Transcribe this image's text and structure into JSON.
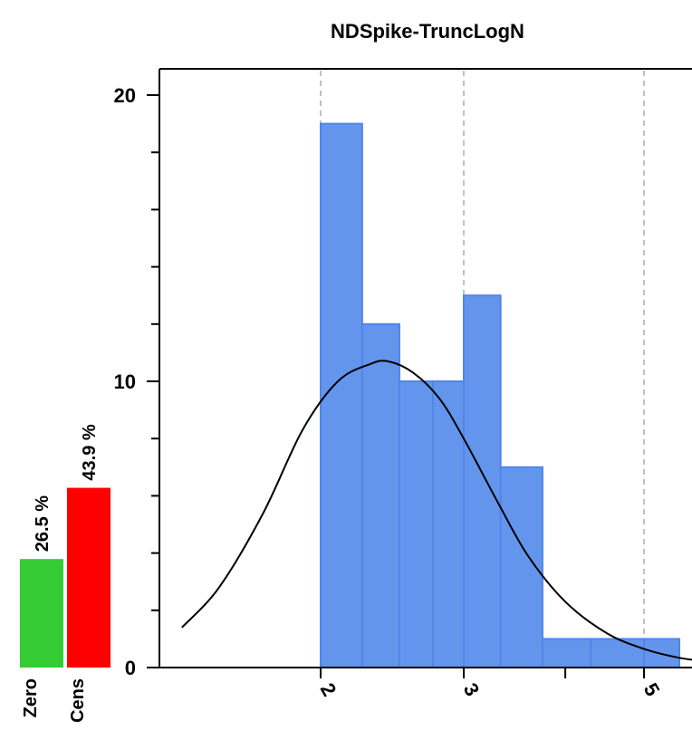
{
  "chart_data": {
    "type": "bar",
    "title": "NDSpike-TruncLogN",
    "xlabel": "",
    "ylabel": "",
    "xscale": "log",
    "ylim": [
      0,
      20
    ],
    "yticks": [
      0,
      10,
      20
    ],
    "xticks": [
      2,
      3,
      5
    ],
    "x_tick_labels": [
      "2",
      "3",
      "5"
    ],
    "bins": [
      {
        "x0": 2.0,
        "x1": 2.25,
        "count": 19
      },
      {
        "x0": 2.25,
        "x1": 2.5,
        "count": 12
      },
      {
        "x0": 2.5,
        "x1": 2.75,
        "count": 10
      },
      {
        "x0": 2.75,
        "x1": 3.0,
        "count": 10
      },
      {
        "x0": 3.0,
        "x1": 3.33,
        "count": 13
      },
      {
        "x0": 3.33,
        "x1": 3.75,
        "count": 7
      },
      {
        "x0": 3.75,
        "x1": 4.3,
        "count": 1
      },
      {
        "x0": 4.3,
        "x1": 5.0,
        "count": 1
      },
      {
        "x0": 5.0,
        "x1": 5.9,
        "count": 1
      }
    ],
    "fit_curve": {
      "peak_x": 2.42,
      "peak_y": 10.7,
      "points": [
        [
          1.35,
          1.4
        ],
        [
          1.5,
          2.8
        ],
        [
          1.7,
          5.4
        ],
        [
          1.9,
          8.3
        ],
        [
          2.1,
          10.0
        ],
        [
          2.3,
          10.6
        ],
        [
          2.42,
          10.7
        ],
        [
          2.6,
          10.3
        ],
        [
          2.8,
          9.4
        ],
        [
          3.0,
          8.0
        ],
        [
          3.3,
          5.8
        ],
        [
          3.6,
          3.9
        ],
        [
          4.0,
          2.3
        ],
        [
          4.5,
          1.2
        ],
        [
          5.0,
          0.65
        ],
        [
          5.5,
          0.35
        ],
        [
          6.0,
          0.2
        ]
      ]
    },
    "side_bars": [
      {
        "label": "Zero",
        "value_label": "26.5 %",
        "fraction": 0.265,
        "color": "#33cc33"
      },
      {
        "label": "Cens",
        "value_label": "43.9 %",
        "fraction": 0.439,
        "color": "#ff0000"
      }
    ],
    "bar_color": "#6495ed",
    "bar_edge_color": "#4f86e8",
    "grid": "vertical-dashed",
    "colors": {
      "axis": "#000000",
      "grid": "#c0c0c0",
      "curve": "#000000"
    }
  }
}
